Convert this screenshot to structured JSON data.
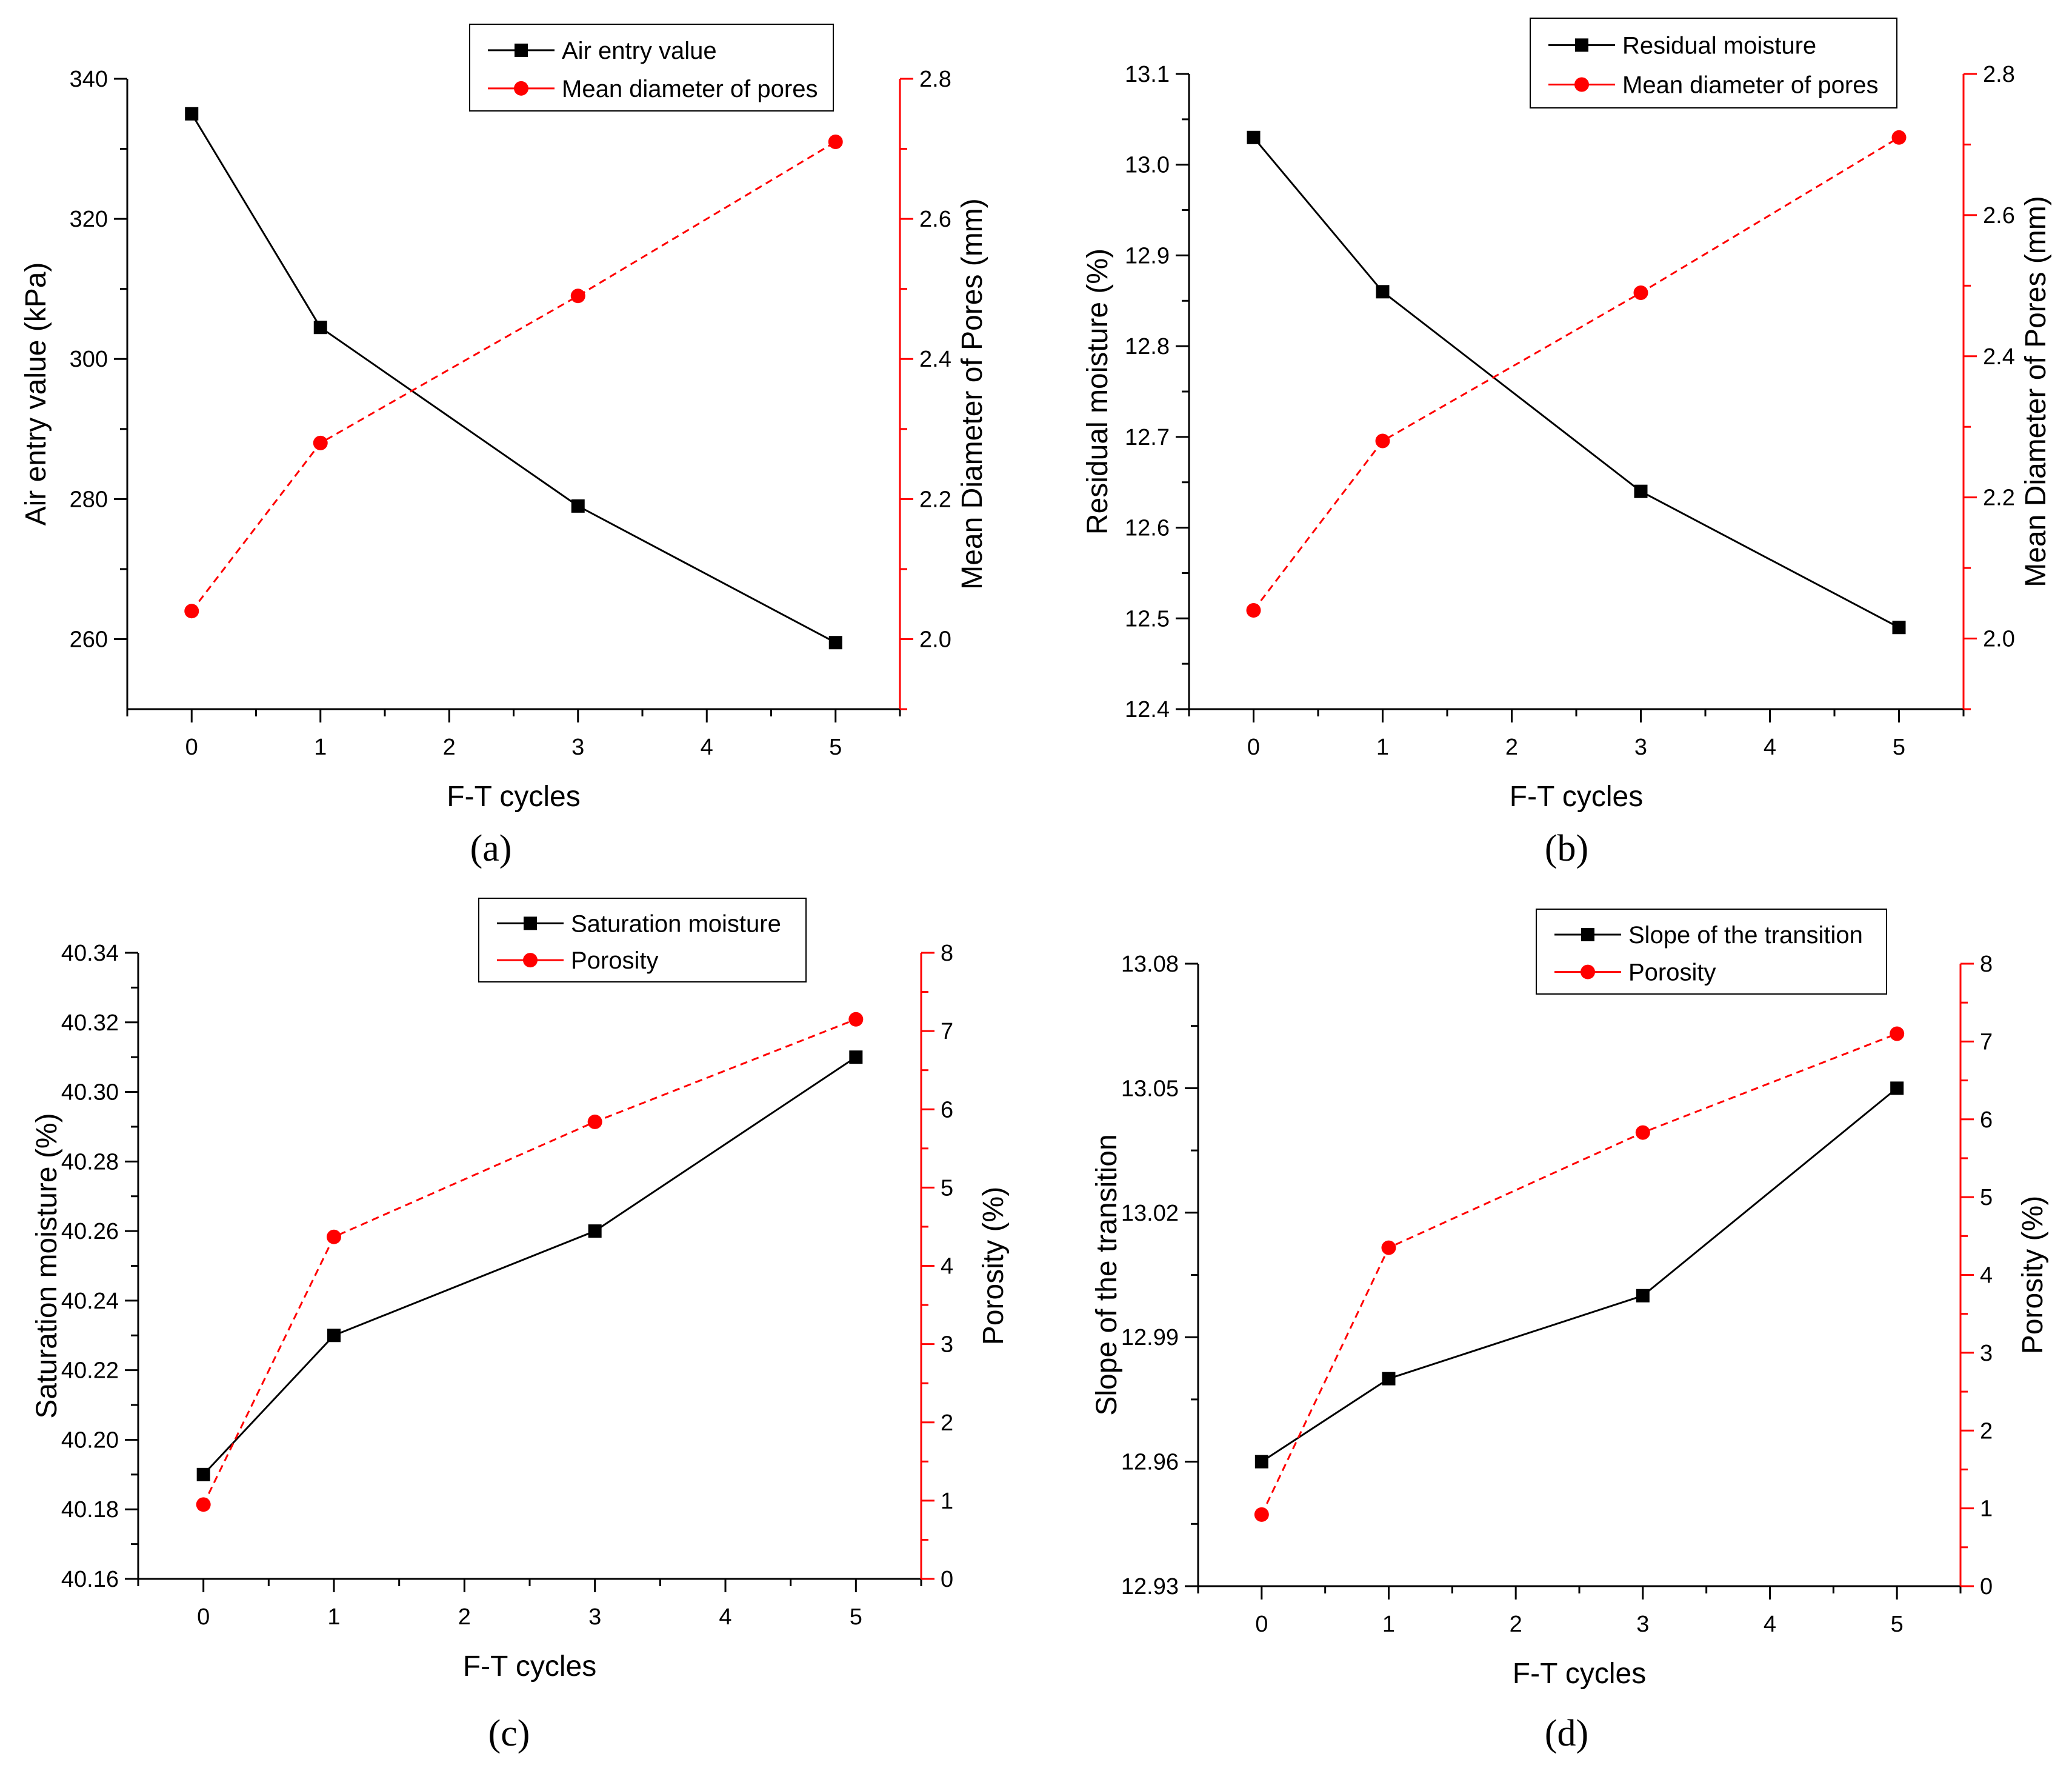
{
  "figure": {
    "colors": {
      "axis": "#000000",
      "primary": "#000000",
      "secondary": "#ff0000",
      "legend_border": "#000000"
    },
    "panels": [
      "a",
      "b",
      "c",
      "d"
    ]
  },
  "chart_data": [
    {
      "id": "a",
      "panel_label": "(a)",
      "type": "line",
      "title": "",
      "xlabel": "F-T cycles",
      "ylabel": "Air entry value (kPa)",
      "y2label": "Mean Diameter of Pores (mm)",
      "xlim": [
        -0.5,
        5.5
      ],
      "xticks": [
        0,
        1,
        2,
        3,
        4,
        5
      ],
      "xtick_labels": [
        "0",
        "1",
        "2",
        "3",
        "4",
        "5"
      ],
      "ylim": [
        250,
        340
      ],
      "yticks": [
        260,
        280,
        300,
        320,
        340
      ],
      "ytick_labels": [
        "260",
        "280",
        "300",
        "320",
        "340"
      ],
      "y2lim": [
        1.9,
        2.8
      ],
      "y2ticks": [
        2.0,
        2.2,
        2.4,
        2.6,
        2.8
      ],
      "y2tick_labels": [
        "2.0",
        "2.2",
        "2.4",
        "2.6",
        "2.8"
      ],
      "legend_position": "top-right",
      "series": [
        {
          "name": "Air entry value",
          "axis": "left",
          "color": "#000000",
          "marker": "square",
          "line": "solid",
          "x": [
            0,
            1,
            3,
            5
          ],
          "values": [
            335,
            304.5,
            279,
            259.5
          ]
        },
        {
          "name": "Mean diameter of pores",
          "axis": "right",
          "color": "#ff0000",
          "marker": "circle",
          "line": "dashed",
          "x": [
            0,
            1,
            3,
            5
          ],
          "values": [
            2.04,
            2.28,
            2.49,
            2.71
          ]
        }
      ]
    },
    {
      "id": "b",
      "panel_label": "(b)",
      "type": "line",
      "title": "",
      "xlabel": "F-T cycles",
      "ylabel": "Residual moisture (%)",
      "y2label": "Mean Diameter of Pores (mm)",
      "xlim": [
        -0.5,
        5.5
      ],
      "xticks": [
        0,
        1,
        2,
        3,
        4,
        5
      ],
      "xtick_labels": [
        "0",
        "1",
        "2",
        "3",
        "4",
        "5"
      ],
      "ylim": [
        12.4,
        13.1
      ],
      "yticks": [
        12.4,
        12.5,
        12.6,
        12.7,
        12.8,
        12.9,
        13.0,
        13.1
      ],
      "ytick_labels": [
        "12.4",
        "12.5",
        "12.6",
        "12.7",
        "12.8",
        "12.9",
        "13.0",
        "13.1"
      ],
      "y2lim": [
        1.9,
        2.8
      ],
      "y2ticks": [
        2.0,
        2.2,
        2.4,
        2.6,
        2.8
      ],
      "y2tick_labels": [
        "2.0",
        "2.2",
        "2.4",
        "2.6",
        "2.8"
      ],
      "legend_position": "top-right",
      "series": [
        {
          "name": "Residual moisture",
          "axis": "left",
          "color": "#000000",
          "marker": "square",
          "line": "solid",
          "x": [
            0,
            1,
            3,
            5
          ],
          "values": [
            13.03,
            12.86,
            12.64,
            12.49
          ]
        },
        {
          "name": "Mean diameter of pores",
          "axis": "right",
          "color": "#ff0000",
          "marker": "circle",
          "line": "dashed",
          "x": [
            0,
            1,
            3,
            5
          ],
          "values": [
            2.04,
            2.28,
            2.49,
            2.71
          ]
        }
      ]
    },
    {
      "id": "c",
      "panel_label": "(c)",
      "type": "line",
      "title": "",
      "xlabel": "F-T cycles",
      "ylabel": "Saturation moisture (%)",
      "y2label": "Porosity (%)",
      "xlim": [
        -0.5,
        5.5
      ],
      "xticks": [
        0,
        1,
        2,
        3,
        4,
        5
      ],
      "xtick_labels": [
        "0",
        "1",
        "2",
        "3",
        "4",
        "5"
      ],
      "ylim": [
        40.16,
        40.34
      ],
      "yticks": [
        40.16,
        40.18,
        40.2,
        40.22,
        40.24,
        40.26,
        40.28,
        40.3,
        40.32,
        40.34
      ],
      "ytick_labels": [
        "40.16",
        "40.18",
        "40.20",
        "40.22",
        "40.24",
        "40.26",
        "40.28",
        "40.30",
        "40.32",
        "40.34"
      ],
      "y2lim": [
        0,
        8
      ],
      "y2ticks": [
        0,
        1,
        2,
        3,
        4,
        5,
        6,
        7,
        8
      ],
      "y2tick_labels": [
        "0",
        "1",
        "2",
        "3",
        "4",
        "5",
        "6",
        "7",
        "8"
      ],
      "legend_position": "top-right",
      "series": [
        {
          "name": "Saturation moisture",
          "axis": "left",
          "color": "#000000",
          "marker": "square",
          "line": "solid",
          "x": [
            0,
            1,
            3,
            5
          ],
          "values": [
            40.19,
            40.23,
            40.26,
            40.31
          ]
        },
        {
          "name": "Porosity",
          "axis": "right",
          "color": "#ff0000",
          "marker": "circle",
          "line": "dashed",
          "x": [
            0,
            1,
            3,
            5
          ],
          "values": [
            0.95,
            4.37,
            5.84,
            7.15
          ]
        }
      ]
    },
    {
      "id": "d",
      "panel_label": "(d)",
      "type": "line",
      "title": "",
      "xlabel": "F-T cycles",
      "ylabel": "Slope of the transition",
      "y2label": "Porosity (%)",
      "xlim": [
        -0.5,
        5.5
      ],
      "xticks": [
        0,
        1,
        2,
        3,
        4,
        5
      ],
      "xtick_labels": [
        "0",
        "1",
        "2",
        "3",
        "4",
        "5"
      ],
      "ylim": [
        12.93,
        13.08
      ],
      "yticks": [
        12.93,
        12.96,
        12.99,
        13.02,
        13.05,
        13.08
      ],
      "ytick_labels": [
        "12.93",
        "12.96",
        "12.99",
        "13.02",
        "13.05",
        "13.08"
      ],
      "y2lim": [
        0,
        8
      ],
      "y2ticks": [
        0,
        1,
        2,
        3,
        4,
        5,
        6,
        7,
        8
      ],
      "y2tick_labels": [
        "0",
        "1",
        "2",
        "3",
        "4",
        "5",
        "6",
        "7",
        "8"
      ],
      "legend_position": "top-right",
      "series": [
        {
          "name": "Slope of the transition",
          "axis": "left",
          "color": "#000000",
          "marker": "square",
          "line": "solid",
          "x": [
            0,
            1,
            3,
            5
          ],
          "values": [
            12.96,
            12.98,
            13.0,
            13.05
          ]
        },
        {
          "name": "Porosity",
          "axis": "right",
          "color": "#ff0000",
          "marker": "circle",
          "line": "dashed",
          "x": [
            0,
            1,
            3,
            5
          ],
          "values": [
            0.92,
            4.35,
            5.83,
            7.1
          ]
        }
      ]
    }
  ]
}
